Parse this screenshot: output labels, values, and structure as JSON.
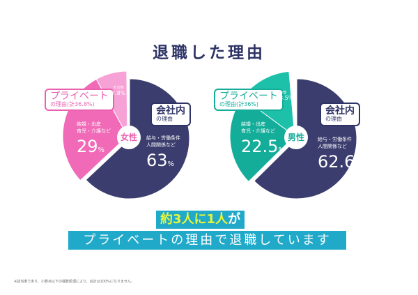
{
  "title": "退職した理由",
  "chart_data": [
    {
      "type": "pie",
      "center_label": "女性",
      "slices": [
        {
          "label": "給与・労働条件 人間関係など",
          "value": 63,
          "color": "#3b3d6e"
        },
        {
          "label": "結婚・出産 育児・介護など",
          "value": 29,
          "color": "#f06ab8"
        },
        {
          "label": "その他",
          "value": 7.8,
          "color": "#f7a2d6"
        }
      ],
      "group_labels": {
        "private_title": "プライベート",
        "private_sub": "の理由(計36.8%)",
        "company_title": "会社内",
        "company_sub": "の理由"
      },
      "accent": "#ea62ae"
    },
    {
      "type": "pie",
      "center_label": "男性",
      "slices": [
        {
          "label": "給与・労働条件 人間関係など",
          "value": 62.6,
          "color": "#3b3d6e"
        },
        {
          "label": "結婚・出産 育児・介護など",
          "value": 22.5,
          "color": "#14ad9a"
        },
        {
          "label": "その他",
          "value": 13.5,
          "color": "#1dc1aa"
        }
      ],
      "group_labels": {
        "private_title": "プライベート",
        "private_sub": "の理由(計36%)",
        "company_title": "会社内",
        "company_sub": "の理由"
      },
      "accent": "#14ad9a"
    }
  ],
  "labels": {
    "company_caption_1": "給与・労働条件",
    "company_caption_2": "人間関係など",
    "private_caption_1": "結婚・出産",
    "private_caption_2": "育児・介護など",
    "other": "その他",
    "pct": "%"
  },
  "values_text": {
    "f_company": "63",
    "f_private": "29",
    "f_other": "7.8",
    "m_company": "62.6",
    "m_private": "22.5",
    "m_other": "13.5"
  },
  "banner": {
    "highlight": "約3人に1人",
    "suffix": "が",
    "line2": "プライベートの理由で退職しています"
  },
  "footnote": "※該当率であり、小数点以下の端数処理により、合計は100%になりません。"
}
